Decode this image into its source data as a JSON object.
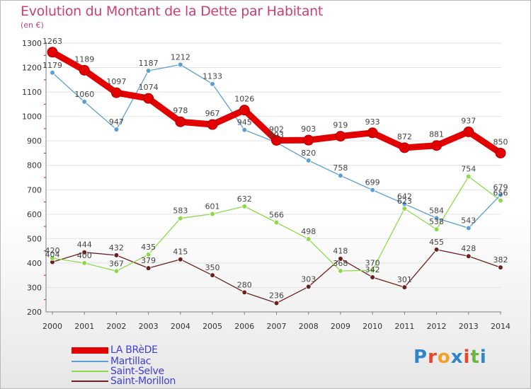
{
  "title": "Evolution du Montant de la Dette par Habitant",
  "subtitle": "(en €)",
  "logo": {
    "text": "Proxiti",
    "colors": [
      "#2f86c9",
      "#e8452c",
      "#f2a12a",
      "#2f86c9",
      "#e8452c",
      "#6fb43f",
      "#2f86c9"
    ]
  },
  "colors": {
    "title": "#c8407a",
    "legend_text": "#3e3ed8",
    "axis": "#7f7f7f",
    "grid": "#e2e2e2"
  },
  "chart_data": {
    "type": "line",
    "x": [
      2000,
      2001,
      2002,
      2003,
      2004,
      2005,
      2006,
      2007,
      2008,
      2009,
      2010,
      2011,
      2012,
      2013,
      2014
    ],
    "ylim": [
      200,
      1300
    ],
    "yticks": [
      200,
      300,
      400,
      500,
      600,
      700,
      800,
      900,
      1000,
      1100,
      1200,
      1300
    ],
    "grid": true,
    "legend_placement": "bottom-left",
    "series": [
      {
        "name": "LA BRèDE",
        "color": "#e30000",
        "values": [
          1263,
          1189,
          1097,
          1074,
          978,
          967,
          1026,
          902,
          903,
          919,
          933,
          872,
          881,
          937,
          850
        ]
      },
      {
        "name": "Martillac",
        "color": "#5b9fd0",
        "values": [
          1179,
          1060,
          947,
          1187,
          1212,
          1133,
          945,
          893,
          820,
          758,
          699,
          642,
          584,
          543,
          679
        ]
      },
      {
        "name": "Saint-Selve",
        "color": "#8ed94a",
        "values": [
          420,
          400,
          367,
          435,
          583,
          601,
          632,
          566,
          498,
          368,
          370,
          623,
          538,
          754,
          656
        ]
      },
      {
        "name": "Saint-Morillon",
        "color": "#6b2020",
        "values": [
          404,
          444,
          432,
          379,
          415,
          350,
          280,
          236,
          303,
          418,
          342,
          301,
          455,
          428,
          382
        ]
      }
    ]
  }
}
